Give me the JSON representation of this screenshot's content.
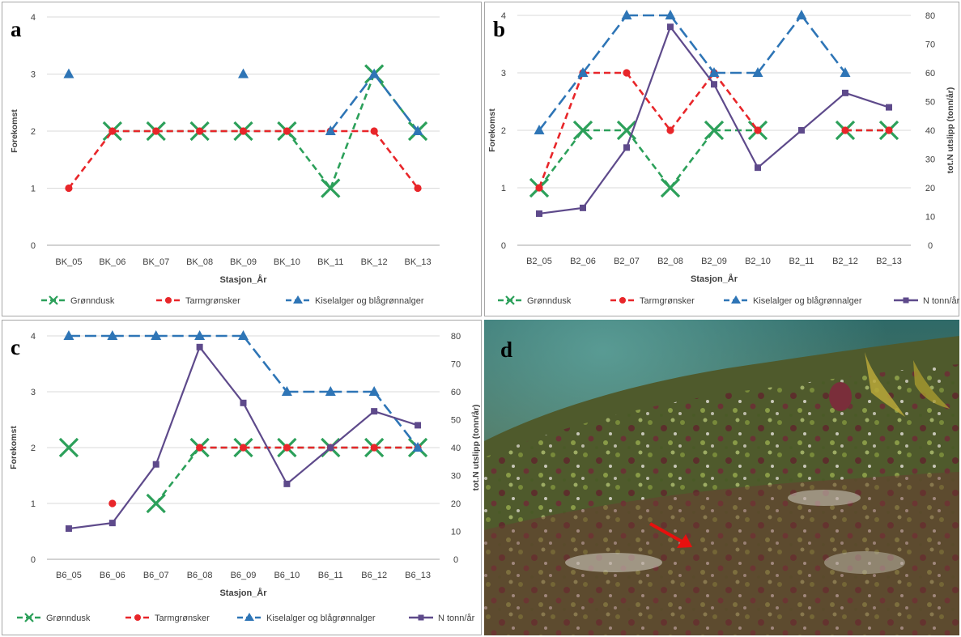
{
  "colors": {
    "gronndusk": "#2ca05a",
    "tarm": "#e8262a",
    "kisel": "#2e75b6",
    "ntonn": "#5e4a8b",
    "grid": "#d9d9d9",
    "axis": "#a6a6a6",
    "text": "#404040"
  },
  "photo": {
    "label": "d",
    "marker_icon": "red-arrow-icon",
    "marker_color": "#e8100e"
  },
  "chart_data": [
    {
      "panel": "a",
      "label": "a",
      "type": "line",
      "categories": [
        "BK_05",
        "BK_06",
        "BK_07",
        "BK_08",
        "BK_09",
        "BK_10",
        "BK_11",
        "BK_12",
        "BK_13"
      ],
      "xlabel": "Stasjon_År",
      "ylabel": "Forekomst",
      "ylim": [
        0,
        4
      ],
      "yticks": [
        "0",
        "1",
        "2",
        "3",
        "4"
      ],
      "grid": true,
      "legend_position": "bottom",
      "series": [
        {
          "name": "Grønndusk",
          "key": "gronndusk",
          "marker": "x",
          "dash": true,
          "values": [
            null,
            2,
            2,
            2,
            2,
            2,
            1,
            3,
            2
          ]
        },
        {
          "name": "Tarmgrønsker",
          "key": "tarm",
          "marker": "circle",
          "dash": true,
          "values": [
            1,
            2,
            2,
            2,
            2,
            2,
            2,
            2,
            1
          ]
        },
        {
          "name": "Kiselalger og blågrønnalger",
          "key": "kisel",
          "marker": "triangle",
          "dash": true,
          "values": [
            3,
            null,
            null,
            null,
            3,
            null,
            2,
            3,
            2
          ]
        }
      ]
    },
    {
      "panel": "b",
      "label": "b",
      "type": "line",
      "categories": [
        "B2_05",
        "B2_06",
        "B2_07",
        "B2_08",
        "B2_09",
        "B2_10",
        "B2_11",
        "B2_12",
        "B2_13"
      ],
      "xlabel": "Stasjon_År",
      "ylabel": "Forekomst",
      "y2label": "tot.N utslipp (tonn/år)",
      "ylim": [
        0,
        4
      ],
      "y2lim": [
        0,
        80
      ],
      "yticks": [
        "0",
        "1",
        "2",
        "3",
        "4"
      ],
      "y2ticks": [
        "0",
        "10",
        "20",
        "30",
        "40",
        "50",
        "60",
        "70",
        "80"
      ],
      "grid": true,
      "legend_position": "bottom",
      "series": [
        {
          "name": "Grønndusk",
          "key": "gronndusk",
          "marker": "x",
          "dash": true,
          "values": [
            1,
            2,
            2,
            1,
            2,
            2,
            null,
            2,
            2
          ]
        },
        {
          "name": "Tarmgrønsker",
          "key": "tarm",
          "marker": "circle",
          "dash": true,
          "values": [
            1,
            3,
            3,
            2,
            3,
            2,
            null,
            2,
            2
          ]
        },
        {
          "name": "Kiselalger og blågrønnalger",
          "key": "kisel",
          "marker": "triangle",
          "dash": true,
          "values": [
            2,
            3,
            4,
            4,
            3,
            3,
            4,
            3,
            null
          ]
        },
        {
          "name": "N tonn/år",
          "key": "ntonn",
          "marker": "square",
          "dash": false,
          "axis": "right",
          "values": [
            11,
            13,
            34,
            76,
            56,
            27,
            40,
            53,
            48
          ]
        }
      ]
    },
    {
      "panel": "c",
      "label": "c",
      "type": "line",
      "categories": [
        "B6_05",
        "B6_06",
        "B6_07",
        "B6_08",
        "B6_09",
        "B6_10",
        "B6_11",
        "B6_12",
        "B6_13"
      ],
      "xlabel": "Stasjon_År",
      "ylabel": "Forekomst",
      "y2label": "tot.N utslipp (tonn/år)",
      "ylim": [
        0,
        4
      ],
      "y2lim": [
        0,
        80
      ],
      "yticks": [
        "0",
        "1",
        "2",
        "3",
        "4"
      ],
      "y2ticks": [
        "0",
        "10",
        "20",
        "30",
        "40",
        "50",
        "60",
        "70",
        "80"
      ],
      "grid": true,
      "legend_position": "bottom",
      "series": [
        {
          "name": "Grønndusk",
          "key": "gronndusk",
          "marker": "x",
          "dash": true,
          "values": [
            2,
            null,
            1,
            2,
            2,
            2,
            2,
            2,
            2
          ]
        },
        {
          "name": "Tarmgrønsker",
          "key": "tarm",
          "marker": "circle",
          "dash": true,
          "values": [
            null,
            1,
            null,
            2,
            2,
            2,
            2,
            2,
            2
          ]
        },
        {
          "name": "Kiselalger og blågrønnalger",
          "key": "kisel",
          "marker": "triangle",
          "dash": true,
          "values": [
            4,
            4,
            4,
            4,
            4,
            3,
            3,
            3,
            2
          ]
        },
        {
          "name": "N tonn/år",
          "key": "ntonn",
          "marker": "square",
          "dash": false,
          "axis": "right",
          "values": [
            11,
            13,
            34,
            76,
            56,
            27,
            40,
            53,
            48
          ]
        }
      ]
    }
  ]
}
